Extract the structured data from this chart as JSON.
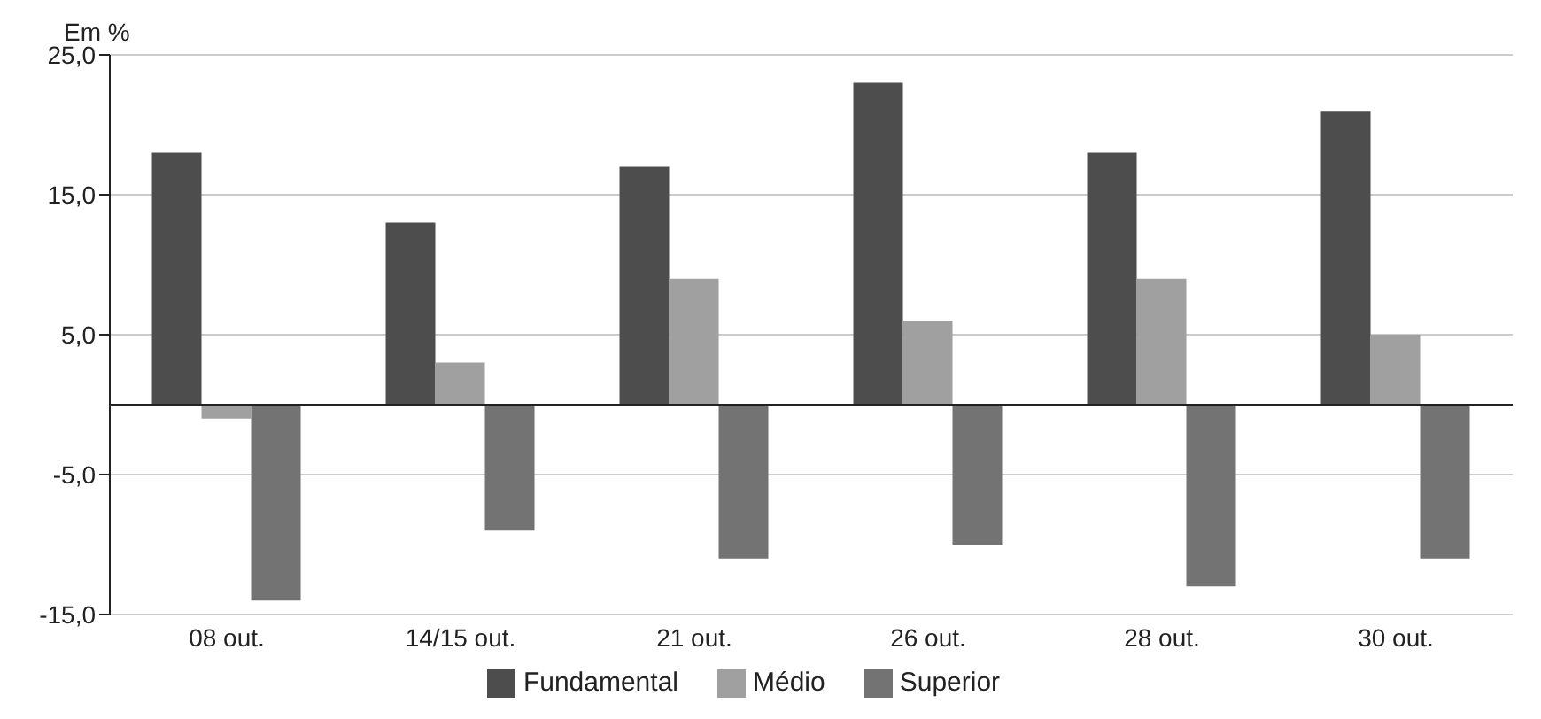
{
  "chart_data": {
    "type": "bar",
    "ylabel": "Em %",
    "categories": [
      "08 out.",
      "14/15 out.",
      "21 out.",
      "26 out.",
      "28 out.",
      "30 out."
    ],
    "series": [
      {
        "name": "Fundamental",
        "color": "#4d4d4d",
        "values": [
          18,
          13,
          17,
          23,
          18,
          21
        ]
      },
      {
        "name": "Médio",
        "color": "#a0a0a0",
        "values": [
          -1,
          3,
          9,
          6,
          9,
          5
        ]
      },
      {
        "name": "Superior",
        "color": "#737373",
        "values": [
          -14,
          -9,
          -11,
          -10,
          -13,
          -11
        ]
      }
    ],
    "ylim": [
      -15,
      25
    ],
    "yticks": [
      {
        "value": -15,
        "label": "-15,0"
      },
      {
        "value": -5,
        "label": "-5,0"
      },
      {
        "value": 5,
        "label": "5,0"
      },
      {
        "value": 15,
        "label": "15,0"
      },
      {
        "value": 25,
        "label": "25,0"
      }
    ],
    "grid": "y",
    "legend": "bottom"
  }
}
